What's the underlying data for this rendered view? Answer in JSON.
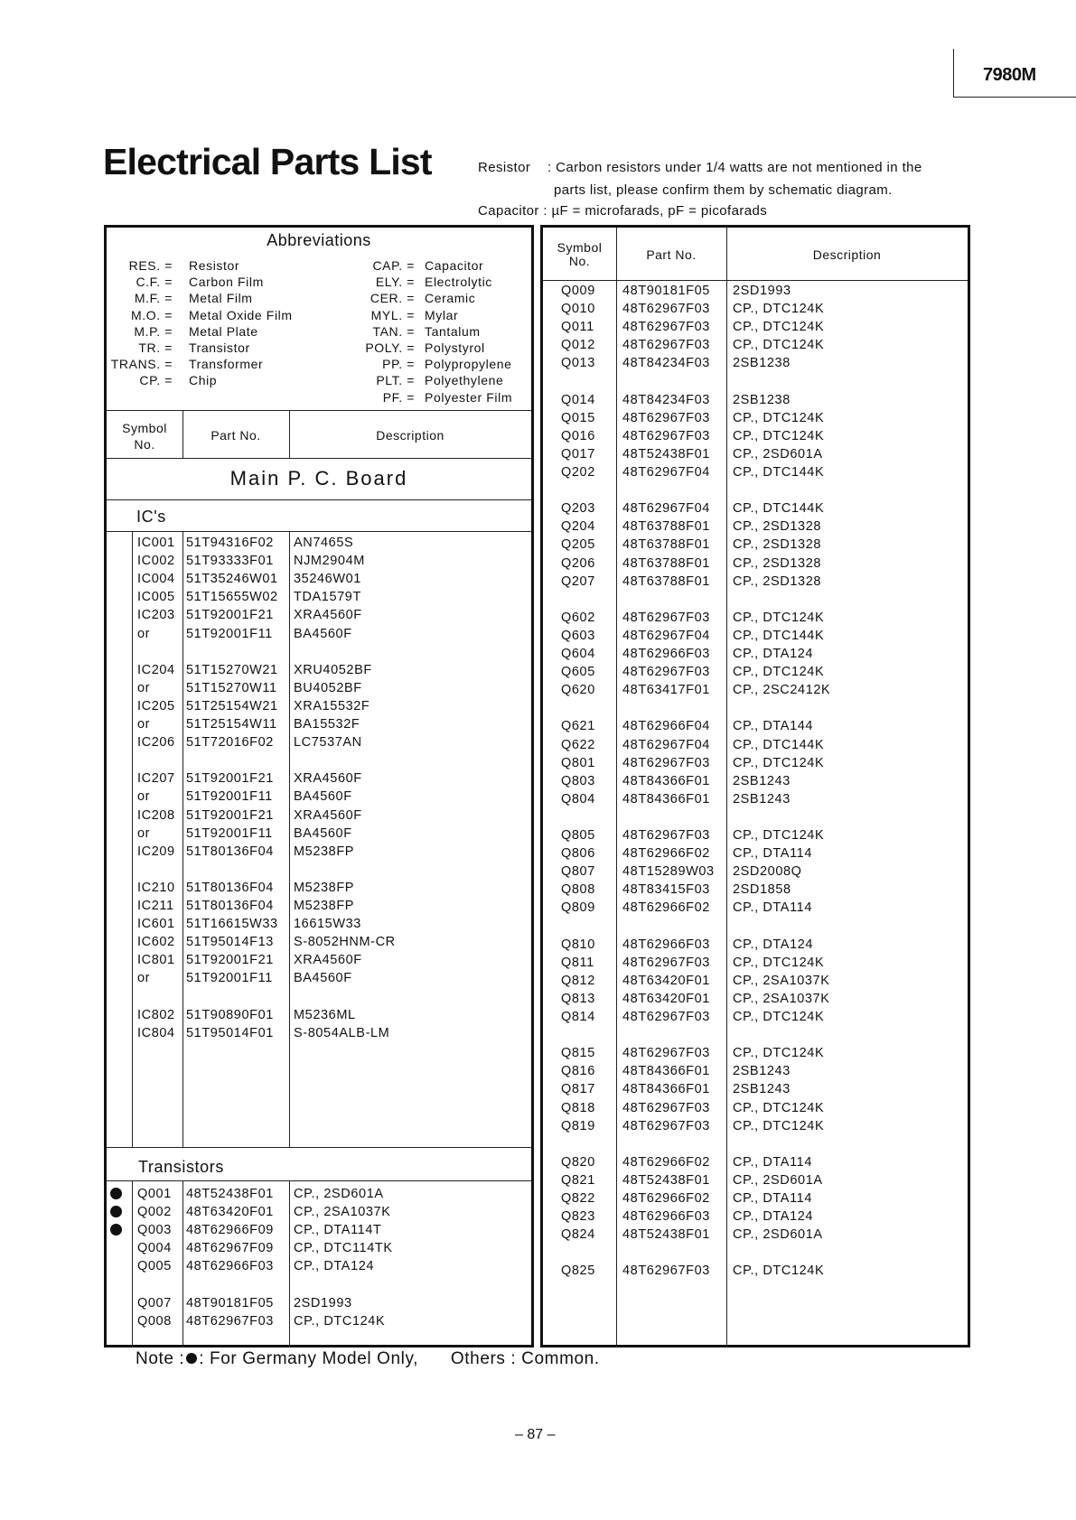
{
  "header": {
    "model": "7980M",
    "title": "Electrical Parts List"
  },
  "notes": {
    "resistor_label": "Resistor",
    "resistor_line1": ": Carbon resistors under 1/4 watts are not mentioned in the",
    "resistor_line2": "parts list, please confirm them by schematic diagram.",
    "capacitor": "Capacitor : µF = microfarads, pF = picofarads"
  },
  "abbreviations": {
    "title": "Abbreviations",
    "left": [
      [
        "RES. =",
        "Resistor"
      ],
      [
        "C.F. =",
        "Carbon Film"
      ],
      [
        "M.F. =",
        "Metal Film"
      ],
      [
        "M.O. =",
        "Metal Oxide Film"
      ],
      [
        "M.P. =",
        "Metal Plate"
      ],
      [
        "TR. =",
        "Transistor"
      ],
      [
        "TRANS. =",
        "Transformer"
      ],
      [
        "CP. =",
        "Chip"
      ]
    ],
    "right": [
      [
        "CAP. =",
        "Capacitor"
      ],
      [
        "ELY. =",
        "Electrolytic"
      ],
      [
        "CER. =",
        "Ceramic"
      ],
      [
        "MYL. =",
        "Mylar"
      ],
      [
        "TAN. =",
        "Tantalum"
      ],
      [
        "POLY. =",
        "Polystyrol"
      ],
      [
        "PP. =",
        "Polypropylene"
      ],
      [
        "PLT. =",
        "Polyethylene"
      ],
      [
        "PF. =",
        "Polyester Film"
      ]
    ]
  },
  "columns": {
    "symbol_1": "Symbol",
    "symbol_2": "No.",
    "part": "Part No.",
    "desc": "Description"
  },
  "board": "Main P. C. Board",
  "ic_section": {
    "title": "IC's",
    "groups": [
      [
        [
          "IC001",
          "51T94316F02",
          "AN7465S"
        ],
        [
          "IC002",
          "51T93333F01",
          "NJM2904M"
        ],
        [
          "IC004",
          "51T35246W01",
          "35246W01"
        ],
        [
          "IC005",
          "51T15655W02",
          "TDA1579T"
        ],
        [
          "IC203",
          "51T92001F21",
          "XRA4560F"
        ],
        [
          "or",
          "51T92001F11",
          "BA4560F"
        ]
      ],
      [
        [
          "IC204",
          "51T15270W21",
          "XRU4052BF"
        ],
        [
          "or",
          "51T15270W11",
          "BU4052BF"
        ],
        [
          "IC205",
          "51T25154W21",
          "XRA15532F"
        ],
        [
          "or",
          "51T25154W11",
          "BA15532F"
        ],
        [
          "IC206",
          "51T72016F02",
          "LC7537AN"
        ]
      ],
      [
        [
          "IC207",
          "51T92001F21",
          "XRA4560F"
        ],
        [
          "or",
          "51T92001F11",
          "BA4560F"
        ],
        [
          "IC208",
          "51T92001F21",
          "XRA4560F"
        ],
        [
          "or",
          "51T92001F11",
          "BA4560F"
        ],
        [
          "IC209",
          "51T80136F04",
          "M5238FP"
        ]
      ],
      [
        [
          "IC210",
          "51T80136F04",
          "M5238FP"
        ],
        [
          "IC211",
          "51T80136F04",
          "M5238FP"
        ],
        [
          "IC601",
          "51T16615W33",
          "16615W33"
        ],
        [
          "IC602",
          "51T95014F13",
          "S-8052HNM-CR"
        ],
        [
          "IC801",
          "51T92001F21",
          "XRA4560F"
        ],
        [
          "or",
          "51T92001F11",
          "BA4560F"
        ]
      ],
      [
        [
          "IC802",
          "51T90890F01",
          "M5236ML"
        ],
        [
          "IC804",
          "51T95014F01",
          "S-8054ALB-LM"
        ]
      ]
    ]
  },
  "transistor_section": {
    "title": "Transistors",
    "groups": [
      [
        [
          "Q001",
          "48T52438F01",
          "CP., 2SD601A",
          true
        ],
        [
          "Q002",
          "48T63420F01",
          "CP., 2SA1037K",
          true
        ],
        [
          "Q003",
          "48T62966F09",
          "CP., DTA114T",
          true
        ],
        [
          "Q004",
          "48T62967F09",
          "CP., DTC114TK",
          false
        ],
        [
          "Q005",
          "48T62966F03",
          "CP., DTA124",
          false
        ]
      ],
      [
        [
          "Q007",
          "48T90181F05",
          "2SD1993",
          false
        ],
        [
          "Q008",
          "48T62967F03",
          "CP., DTC124K",
          false
        ]
      ]
    ]
  },
  "right_groups": [
    [
      [
        "Q009",
        "48T90181F05",
        "2SD1993"
      ],
      [
        "Q010",
        "48T62967F03",
        "CP., DTC124K"
      ],
      [
        "Q011",
        "48T62967F03",
        "CP., DTC124K"
      ],
      [
        "Q012",
        "48T62967F03",
        "CP., DTC124K"
      ],
      [
        "Q013",
        "48T84234F03",
        "2SB1238"
      ]
    ],
    [
      [
        "Q014",
        "48T84234F03",
        "2SB1238"
      ],
      [
        "Q015",
        "48T62967F03",
        "CP., DTC124K"
      ],
      [
        "Q016",
        "48T62967F03",
        "CP., DTC124K"
      ],
      [
        "Q017",
        "48T52438F01",
        "CP., 2SD601A"
      ],
      [
        "Q202",
        "48T62967F04",
        "CP., DTC144K"
      ]
    ],
    [
      [
        "Q203",
        "48T62967F04",
        "CP., DTC144K"
      ],
      [
        "Q204",
        "48T63788F01",
        "CP., 2SD1328"
      ],
      [
        "Q205",
        "48T63788F01",
        "CP., 2SD1328"
      ],
      [
        "Q206",
        "48T63788F01",
        "CP., 2SD1328"
      ],
      [
        "Q207",
        "48T63788F01",
        "CP., 2SD1328"
      ]
    ],
    [
      [
        "Q602",
        "48T62967F03",
        "CP., DTC124K"
      ],
      [
        "Q603",
        "48T62967F04",
        "CP., DTC144K"
      ],
      [
        "Q604",
        "48T62966F03",
        "CP., DTA124"
      ],
      [
        "Q605",
        "48T62967F03",
        "CP., DTC124K"
      ],
      [
        "Q620",
        "48T63417F01",
        "CP., 2SC2412K"
      ]
    ],
    [
      [
        "Q621",
        "48T62966F04",
        "CP., DTA144"
      ],
      [
        "Q622",
        "48T62967F04",
        "CP., DTC144K"
      ],
      [
        "Q801",
        "48T62967F03",
        "CP., DTC124K"
      ],
      [
        "Q803",
        "48T84366F01",
        "2SB1243"
      ],
      [
        "Q804",
        "48T84366F01",
        "2SB1243"
      ]
    ],
    [
      [
        "Q805",
        "48T62967F03",
        "CP., DTC124K"
      ],
      [
        "Q806",
        "48T62966F02",
        "CP., DTA114"
      ],
      [
        "Q807",
        "48T15289W03",
        "2SD2008Q"
      ],
      [
        "Q808",
        "48T83415F03",
        "2SD1858"
      ],
      [
        "Q809",
        "48T62966F02",
        "CP., DTA114"
      ]
    ],
    [
      [
        "Q810",
        "48T62966F03",
        "CP., DTA124"
      ],
      [
        "Q811",
        "48T62967F03",
        "CP., DTC124K"
      ],
      [
        "Q812",
        "48T63420F01",
        "CP., 2SA1037K"
      ],
      [
        "Q813",
        "48T63420F01",
        "CP., 2SA1037K"
      ],
      [
        "Q814",
        "48T62967F03",
        "CP., DTC124K"
      ]
    ],
    [
      [
        "Q815",
        "48T62967F03",
        "CP., DTC124K"
      ],
      [
        "Q816",
        "48T84366F01",
        "2SB1243"
      ],
      [
        "Q817",
        "48T84366F01",
        "2SB1243"
      ],
      [
        "Q818",
        "48T62967F03",
        "CP., DTC124K"
      ],
      [
        "Q819",
        "48T62967F03",
        "CP., DTC124K"
      ]
    ],
    [
      [
        "Q820",
        "48T62966F02",
        "CP., DTA114"
      ],
      [
        "Q821",
        "48T52438F01",
        "CP., 2SD601A"
      ],
      [
        "Q822",
        "48T62966F02",
        "CP., DTA114"
      ],
      [
        "Q823",
        "48T62966F03",
        "CP., DTA124"
      ],
      [
        "Q824",
        "48T52438F01",
        "CP., 2SD601A"
      ]
    ],
    [
      [
        "Q825",
        "48T62967F03",
        "CP., DTC124K"
      ]
    ]
  ],
  "footer": {
    "note_label": "Note :",
    "note_text": ": For Germany Model Only,",
    "others": "Others : Common.",
    "page": "– 87 –"
  }
}
